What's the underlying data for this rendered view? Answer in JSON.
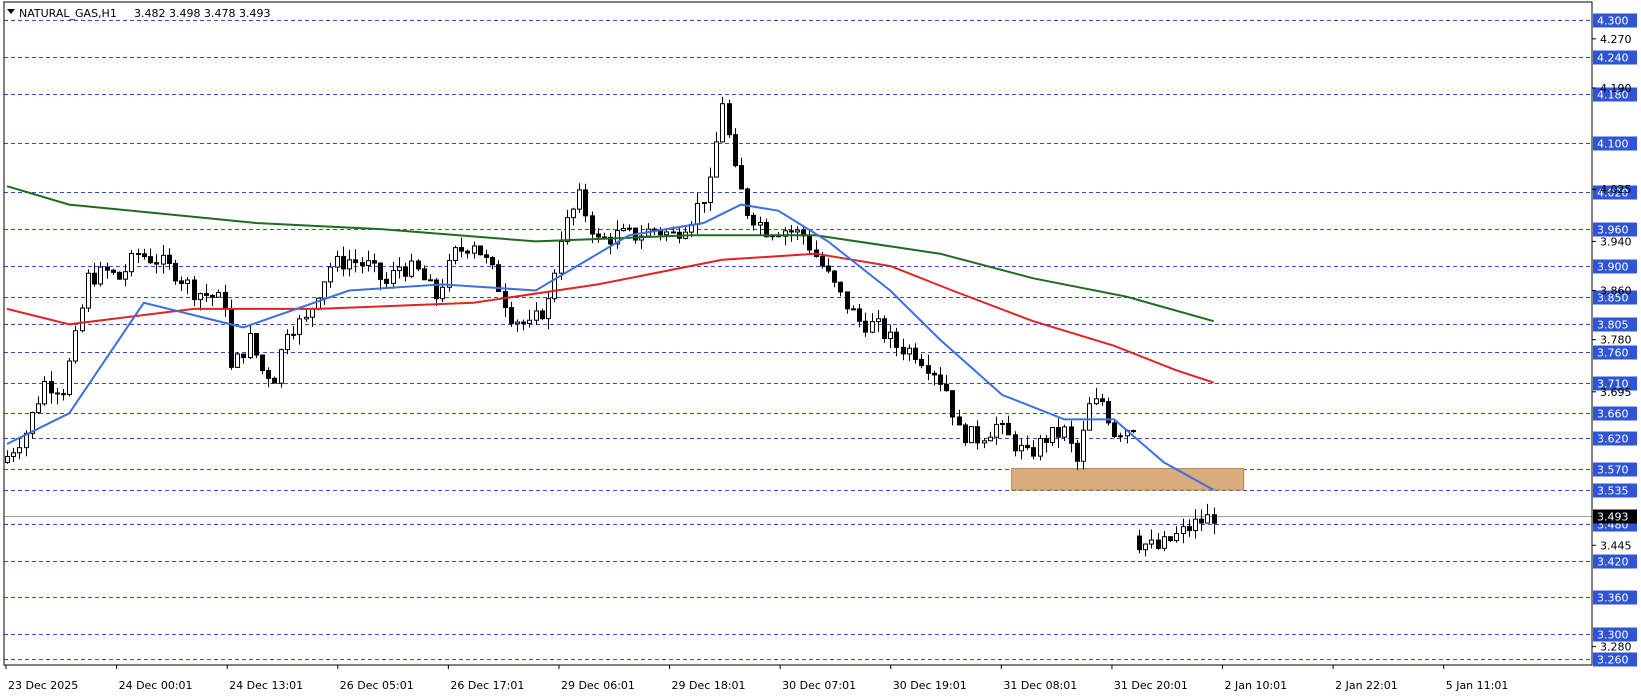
{
  "header": {
    "symbol_timeframe": "NATURAL_GAS,H1",
    "ohlc": "3.482 3.498 3.478 3.493"
  },
  "colors": {
    "background": "#ffffff",
    "grid": "#2f4fd0",
    "axis": "#000000",
    "ma_fast": "#3d6fe0",
    "ma_mid": "#e02424",
    "ma_slow": "#1f6b1f",
    "badge_bg": "#2f55d4",
    "last_badge_bg": "#000000",
    "zone_fill": "#d9ad7c",
    "candle_bull": "#ffffff",
    "candle_bear": "#000000"
  },
  "chart_data": {
    "type": "candlestick",
    "symbol": "NATURAL_GAS",
    "timeframe": "H1",
    "ylim": [
      3.25,
      4.33
    ],
    "levels": [
      4.3,
      4.24,
      4.18,
      4.1,
      4.02,
      3.96,
      3.9,
      3.85,
      3.805,
      3.76,
      3.71,
      3.66,
      3.62,
      3.57,
      3.535,
      3.48,
      3.42,
      3.36,
      3.3,
      3.26
    ],
    "minor_ticks": [
      4.27,
      4.19,
      4.025,
      3.94,
      3.86,
      3.78,
      3.695,
      3.445,
      3.28
    ],
    "last_price": 3.493,
    "zone": {
      "from": 3.535,
      "to": 3.57
    },
    "time_labels": [
      "23 Dec 2025",
      "24 Dec 00:01",
      "24 Dec 13:01",
      "26 Dec 05:01",
      "26 Dec 17:01",
      "29 Dec 06:01",
      "29 Dec 18:01",
      "30 Dec 07:01",
      "30 Dec 19:01",
      "31 Dec 08:01",
      "31 Dec 20:01",
      "2 Jan 10:01",
      "2 Jan 22:01",
      "5 Jan 11:01"
    ],
    "key_closes": [
      [
        0,
        3.59
      ],
      [
        3,
        3.63
      ],
      [
        6,
        3.71
      ],
      [
        9,
        3.7
      ],
      [
        11,
        3.78
      ],
      [
        13,
        3.88
      ],
      [
        16,
        3.89
      ],
      [
        18,
        3.88
      ],
      [
        21,
        3.92
      ],
      [
        24,
        3.91
      ],
      [
        27,
        3.89
      ],
      [
        30,
        3.86
      ],
      [
        33,
        3.85
      ],
      [
        35,
        3.84
      ],
      [
        36,
        3.73
      ],
      [
        39,
        3.78
      ],
      [
        41,
        3.73
      ],
      [
        43,
        3.72
      ],
      [
        45,
        3.8
      ],
      [
        48,
        3.81
      ],
      [
        50,
        3.86
      ],
      [
        52,
        3.9
      ],
      [
        55,
        3.91
      ],
      [
        58,
        3.9
      ],
      [
        61,
        3.87
      ],
      [
        63,
        3.9
      ],
      [
        66,
        3.89
      ],
      [
        69,
        3.85
      ],
      [
        72,
        3.92
      ],
      [
        75,
        3.94
      ],
      [
        78,
        3.89
      ],
      [
        81,
        3.82
      ],
      [
        84,
        3.8
      ],
      [
        87,
        3.84
      ],
      [
        89,
        3.95
      ],
      [
        92,
        4.01
      ],
      [
        95,
        3.94
      ],
      [
        98,
        3.95
      ],
      [
        101,
        3.95
      ],
      [
        104,
        3.96
      ],
      [
        107,
        3.95
      ],
      [
        110,
        3.98
      ],
      [
        113,
        4.03
      ],
      [
        115,
        4.17
      ],
      [
        117,
        4.05
      ],
      [
        119,
        3.99
      ],
      [
        122,
        3.96
      ],
      [
        125,
        3.96
      ],
      [
        128,
        3.95
      ],
      [
        131,
        3.9
      ],
      [
        134,
        3.85
      ],
      [
        137,
        3.81
      ],
      [
        140,
        3.8
      ],
      [
        143,
        3.77
      ],
      [
        146,
        3.76
      ],
      [
        149,
        3.73
      ],
      [
        151,
        3.7
      ],
      [
        153,
        3.63
      ],
      [
        156,
        3.62
      ],
      [
        159,
        3.64
      ],
      [
        162,
        3.61
      ],
      [
        164,
        3.59
      ],
      [
        167,
        3.62
      ],
      [
        170,
        3.63
      ],
      [
        172,
        3.58
      ],
      [
        174,
        3.67
      ],
      [
        176,
        3.68
      ],
      [
        178,
        3.63
      ],
      [
        181,
        3.64
      ],
      [
        182,
        3.45
      ],
      [
        185,
        3.44
      ],
      [
        188,
        3.46
      ],
      [
        191,
        3.48
      ],
      [
        194,
        3.493
      ]
    ],
    "ma_fast": [
      [
        0,
        3.61
      ],
      [
        10,
        3.66
      ],
      [
        22,
        3.84
      ],
      [
        38,
        3.8
      ],
      [
        55,
        3.86
      ],
      [
        70,
        3.87
      ],
      [
        85,
        3.86
      ],
      [
        100,
        3.95
      ],
      [
        112,
        3.97
      ],
      [
        118,
        4.0
      ],
      [
        124,
        3.99
      ],
      [
        132,
        3.94
      ],
      [
        142,
        3.86
      ],
      [
        150,
        3.78
      ],
      [
        160,
        3.69
      ],
      [
        170,
        3.65
      ],
      [
        178,
        3.65
      ],
      [
        186,
        3.58
      ],
      [
        194,
        3.535
      ]
    ],
    "ma_mid": [
      [
        0,
        3.83
      ],
      [
        10,
        3.805
      ],
      [
        30,
        3.83
      ],
      [
        50,
        3.83
      ],
      [
        75,
        3.84
      ],
      [
        95,
        3.87
      ],
      [
        115,
        3.91
      ],
      [
        130,
        3.92
      ],
      [
        142,
        3.9
      ],
      [
        152,
        3.86
      ],
      [
        165,
        3.81
      ],
      [
        178,
        3.77
      ],
      [
        188,
        3.73
      ],
      [
        194,
        3.71
      ]
    ],
    "ma_slow": [
      [
        0,
        4.03
      ],
      [
        10,
        4.0
      ],
      [
        40,
        3.97
      ],
      [
        60,
        3.96
      ],
      [
        85,
        3.94
      ],
      [
        110,
        3.95
      ],
      [
        130,
        3.95
      ],
      [
        150,
        3.92
      ],
      [
        165,
        3.88
      ],
      [
        180,
        3.85
      ],
      [
        194,
        3.81
      ]
    ]
  }
}
